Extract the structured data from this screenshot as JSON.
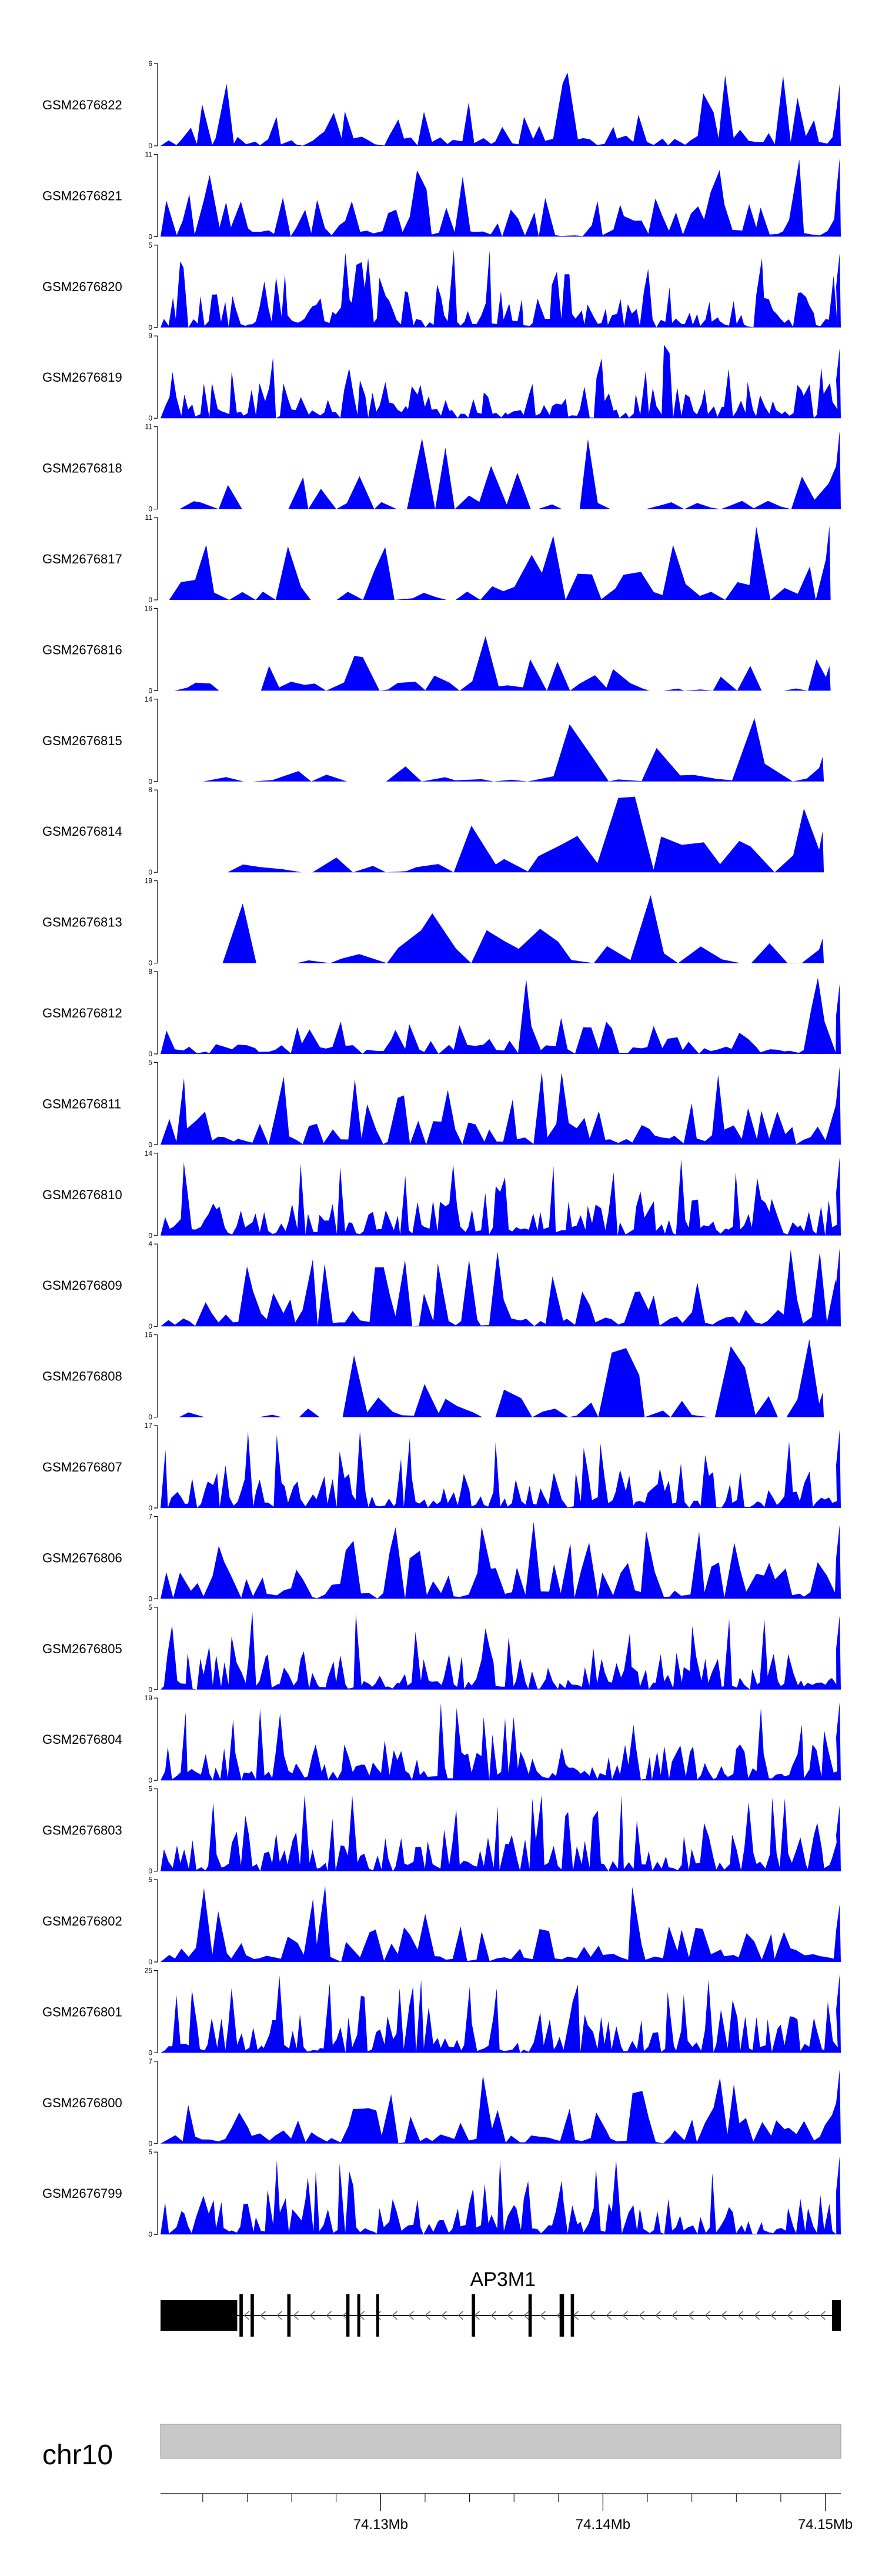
{
  "chart_data": {
    "type": "area",
    "region": {
      "chrom": "chr10",
      "start": 74120100,
      "end": 74150700
    },
    "tracks": [
      {
        "name": "GSM2676822",
        "ymax": 6,
        "seed": 22,
        "end_frac": 1.0,
        "dens": "med",
        "tail": 0.75
      },
      {
        "name": "GSM2676821",
        "ymax": 11,
        "seed": 21,
        "end_frac": 1.0,
        "dens": "med",
        "tail": 0.95
      },
      {
        "name": "GSM2676820",
        "ymax": 5,
        "seed": 20,
        "end_frac": 1.0,
        "dens": "high",
        "tail": 0.9
      },
      {
        "name": "GSM2676819",
        "ymax": 9,
        "seed": 19,
        "end_frac": 1.0,
        "dens": "high",
        "tail": 0.85
      },
      {
        "name": "GSM2676818",
        "ymax": 11,
        "seed": 18,
        "end_frac": 1.0,
        "dens": "low",
        "tail": 0.95
      },
      {
        "name": "GSM2676817",
        "ymax": 11,
        "seed": 17,
        "end_frac": 0.985,
        "dens": "low",
        "tail": 0.9
      },
      {
        "name": "GSM2676816",
        "ymax": 16,
        "seed": 16,
        "end_frac": 0.985,
        "dens": "low",
        "tail": 0.3
      },
      {
        "name": "GSM2676815",
        "ymax": 14,
        "seed": 15,
        "end_frac": 0.975,
        "dens": "vlow",
        "tail": 0.3
      },
      {
        "name": "GSM2676814",
        "ymax": 8,
        "seed": 14,
        "end_frac": 0.975,
        "dens": "vlow",
        "tail": 0.5
      },
      {
        "name": "GSM2676813",
        "ymax": 19,
        "seed": 13,
        "end_frac": 0.975,
        "dens": "vlow",
        "tail": 0.3
      },
      {
        "name": "GSM2676812",
        "ymax": 8,
        "seed": 12,
        "end_frac": 1.0,
        "dens": "med",
        "tail": 0.85
      },
      {
        "name": "GSM2676811",
        "ymax": 5,
        "seed": 11,
        "end_frac": 1.0,
        "dens": "med",
        "tail": 0.95
      },
      {
        "name": "GSM2676810",
        "ymax": 14,
        "seed": 10,
        "end_frac": 1.0,
        "dens": "high",
        "tail": 0.95
      },
      {
        "name": "GSM2676809",
        "ymax": 4,
        "seed": 9,
        "end_frac": 1.0,
        "dens": "med",
        "tail": 0.95
      },
      {
        "name": "GSM2676808",
        "ymax": 16,
        "seed": 8,
        "end_frac": 0.975,
        "dens": "low",
        "tail": 0.3
      },
      {
        "name": "GSM2676807",
        "ymax": 17,
        "seed": 7,
        "end_frac": 1.0,
        "dens": "high",
        "tail": 0.95
      },
      {
        "name": "GSM2676806",
        "ymax": 7,
        "seed": 6,
        "end_frac": 1.0,
        "dens": "med",
        "tail": 0.9
      },
      {
        "name": "GSM2676805",
        "ymax": 5,
        "seed": 5,
        "end_frac": 1.0,
        "dens": "high",
        "tail": 0.9
      },
      {
        "name": "GSM2676804",
        "ymax": 19,
        "seed": 4,
        "end_frac": 1.0,
        "dens": "high",
        "tail": 0.95
      },
      {
        "name": "GSM2676803",
        "ymax": 5,
        "seed": 3,
        "end_frac": 1.0,
        "dens": "high",
        "tail": 0.8
      },
      {
        "name": "GSM2676802",
        "ymax": 5,
        "seed": 2,
        "end_frac": 1.0,
        "dens": "med",
        "tail": 0.7
      },
      {
        "name": "GSM2676801",
        "ymax": 25,
        "seed": 1,
        "end_frac": 1.0,
        "dens": "high",
        "tail": 0.95
      },
      {
        "name": "GSM2676800",
        "ymax": 7,
        "seed": 100,
        "end_frac": 1.0,
        "dens": "med",
        "tail": 0.9
      },
      {
        "name": "GSM2676799",
        "ymax": 5,
        "seed": 99,
        "end_frac": 1.0,
        "dens": "high",
        "tail": 0.95
      }
    ],
    "gene": {
      "name": "AP3M1",
      "strand": "-",
      "exons": [
        {
          "start": 74120100,
          "end": 74123550
        },
        {
          "start": 74123650,
          "end": 74123800
        },
        {
          "start": 74124150,
          "end": 74124300
        },
        {
          "start": 74125800,
          "end": 74125950
        },
        {
          "start": 74128450,
          "end": 74128600
        },
        {
          "start": 74128950,
          "end": 74129050
        },
        {
          "start": 74129800,
          "end": 74129900
        },
        {
          "start": 74134100,
          "end": 74134250
        },
        {
          "start": 74136650,
          "end": 74136800
        },
        {
          "start": 74138050,
          "end": 74138250
        },
        {
          "start": 74138550,
          "end": 74138700
        },
        {
          "start": 74150300,
          "end": 74150700
        }
      ]
    },
    "chromosome": "chr10",
    "axis_ticks": [
      {
        "pos": 74130000,
        "label": "74.13Mb"
      },
      {
        "pos": 74140000,
        "label": "74.14Mb"
      },
      {
        "pos": 74150000,
        "label": "74.15Mb"
      }
    ],
    "minor_tick_step": 2000,
    "colors": {
      "signal": "#0000ff",
      "gene": "#000000",
      "chrom_band": "#c8c8c8",
      "axis": "#000000"
    }
  }
}
